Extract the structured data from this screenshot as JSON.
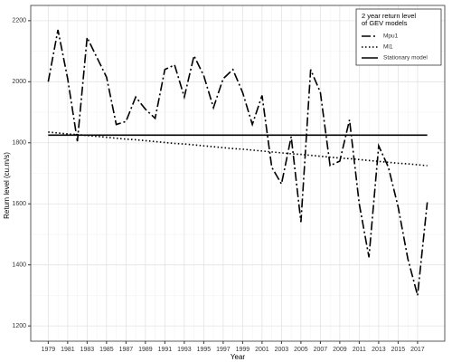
{
  "chart_data": {
    "type": "line",
    "x_label": "Year",
    "y_label": "Return level (cu.m/s)",
    "x": [
      1979,
      1980,
      1981,
      1982,
      1983,
      1984,
      1985,
      1986,
      1987,
      1988,
      1989,
      1990,
      1991,
      1992,
      1993,
      1994,
      1995,
      1996,
      1997,
      1998,
      1999,
      2000,
      2001,
      2002,
      2003,
      2004,
      2005,
      2006,
      2007,
      2008,
      2009,
      2010,
      2011,
      2012,
      2013,
      2014,
      2015,
      2016,
      2017,
      2018
    ],
    "series": [
      {
        "name": "Mpu1",
        "color": "#000000",
        "dash": "10,3,2,3",
        "values": [
          2000,
          2170,
          2010,
          1805,
          2145,
          2080,
          2015,
          1860,
          1870,
          1950,
          1910,
          1880,
          2040,
          2055,
          1950,
          2085,
          2020,
          1915,
          2010,
          2040,
          1965,
          1860,
          1955,
          1720,
          1665,
          1820,
          1540,
          2040,
          1965,
          1725,
          1740,
          1875,
          1600,
          1425,
          1790,
          1720,
          1590,
          1420,
          1300,
          1605
        ]
      },
      {
        "name": "Ml1",
        "color": "#000000",
        "dash": "1.5,2.5",
        "values": [
          1835,
          1832,
          1829,
          1827,
          1824,
          1821,
          1818,
          1815,
          1812,
          1810,
          1807,
          1804,
          1801,
          1798,
          1796,
          1793,
          1790,
          1787,
          1784,
          1781,
          1779,
          1776,
          1773,
          1770,
          1767,
          1764,
          1762,
          1759,
          1756,
          1753,
          1750,
          1748,
          1745,
          1742,
          1739,
          1736,
          1733,
          1731,
          1728,
          1725
        ]
      },
      {
        "name": "Stationary model",
        "color": "#000000",
        "dash": "none",
        "values": [
          1825,
          1825,
          1825,
          1825,
          1825,
          1825,
          1825,
          1825,
          1825,
          1825,
          1825,
          1825,
          1825,
          1825,
          1825,
          1825,
          1825,
          1825,
          1825,
          1825,
          1825,
          1825,
          1825,
          1825,
          1825,
          1825,
          1825,
          1825,
          1825,
          1825,
          1825,
          1825,
          1825,
          1825,
          1825,
          1825,
          1825,
          1825,
          1825,
          1825
        ]
      }
    ],
    "legend_title": [
      "2 year return level",
      "of GEV models"
    ],
    "legend_position": "top-right",
    "xlim": [
      1977.2,
      2019.8
    ],
    "ylim": [
      1150,
      2250
    ],
    "xticks": [
      1979,
      1981,
      1983,
      1985,
      1987,
      1989,
      1991,
      1993,
      1995,
      1997,
      1999,
      2001,
      2003,
      2005,
      2007,
      2009,
      2011,
      2013,
      2015,
      2017
    ],
    "yticks": [
      1200,
      1400,
      1600,
      1800,
      2000,
      2200
    ],
    "grid": true
  }
}
